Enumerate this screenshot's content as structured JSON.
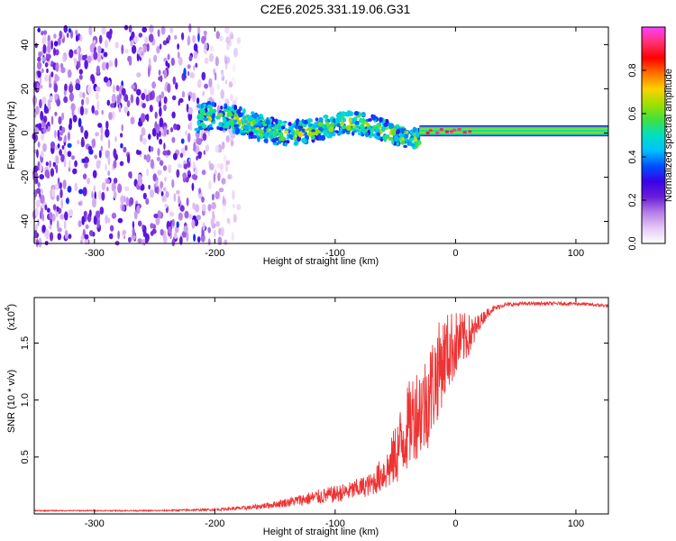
{
  "title": "C2E6.2025.331.19.06.G31",
  "chart_data": [
    {
      "type": "heatmap",
      "name": "spectrogram",
      "xlabel": "Height of straight line (km)",
      "ylabel": "Frequency (Hz)",
      "xlim": [
        -350,
        127
      ],
      "ylim": [
        -50,
        48
      ],
      "xticks": [
        -300,
        -200,
        -100,
        0,
        100
      ],
      "xtick_labels": [
        "-300",
        "-200",
        "-100",
        "0",
        "100"
      ],
      "yticks": [
        -40,
        -20,
        0,
        20,
        40
      ],
      "ytick_labels": [
        "-40",
        "-20",
        "0",
        "20",
        "40"
      ],
      "colorbar": {
        "label": "Normalized spectral amplitude",
        "range": [
          0,
          1
        ],
        "ticks": [
          0.0,
          0.2,
          0.4,
          0.6,
          0.8
        ],
        "tick_labels": [
          "0.0",
          "0.2",
          "0.4",
          "0.6",
          "0.8"
        ],
        "stops": [
          "#ffffff",
          "#e6c8f5",
          "#b57ee8",
          "#6a1fd8",
          "#3a00e8",
          "#0050ff",
          "#00bfff",
          "#00e0c0",
          "#40e040",
          "#a0e000",
          "#ffd000",
          "#ff7000",
          "#ff0000",
          "#ff3070",
          "#ff40ff"
        ]
      },
      "regions": [
        {
          "name": "noise",
          "x": [
            -350,
            -180
          ],
          "freq": [
            -50,
            48
          ],
          "amplitude": [
            0.05,
            0.25
          ]
        },
        {
          "name": "signal-trace",
          "x": [
            -215,
            -30
          ],
          "freq_center": [
            5,
            0
          ],
          "freq_width": 12,
          "amplitude": [
            0.2,
            0.6
          ]
        },
        {
          "name": "locked-band",
          "x": [
            -30,
            127
          ],
          "freq_center": 1,
          "freq_width": 5,
          "amplitude": [
            0.5,
            0.95
          ]
        }
      ]
    },
    {
      "type": "line",
      "name": "snr",
      "xlabel": "Height of straight line (km)",
      "ylabel": "SNR (10 * v/v)",
      "multiplier": "(x10",
      "multiplier_exp": "4",
      "multiplier_close": ")",
      "xlim": [
        -350,
        127
      ],
      "ylim": [
        0,
        1.9
      ],
      "xticks": [
        -300,
        -200,
        -100,
        0,
        100
      ],
      "xtick_labels": [
        "-300",
        "-200",
        "-100",
        "0",
        "100"
      ],
      "yticks": [
        0.5,
        1.0,
        1.5
      ],
      "ytick_labels": [
        "0.5",
        "1.0",
        "1.5"
      ],
      "color": "#ee3333",
      "series": [
        {
          "name": "SNR",
          "x": [
            -350,
            -300,
            -250,
            -200,
            -170,
            -150,
            -130,
            -110,
            -90,
            -70,
            -55,
            -45,
            -35,
            -25,
            -18,
            -12,
            -6,
            0,
            5,
            10,
            15,
            20,
            25,
            30,
            40,
            60,
            80,
            100,
            127
          ],
          "y": [
            0.03,
            0.03,
            0.03,
            0.04,
            0.06,
            0.09,
            0.13,
            0.17,
            0.21,
            0.28,
            0.45,
            0.7,
            0.95,
            1.05,
            1.25,
            1.4,
            1.5,
            1.55,
            1.57,
            1.6,
            1.62,
            1.7,
            1.76,
            1.8,
            1.84,
            1.85,
            1.85,
            1.85,
            1.83
          ],
          "noise": [
            0.005,
            0.005,
            0.006,
            0.01,
            0.02,
            0.03,
            0.05,
            0.07,
            0.08,
            0.1,
            0.2,
            0.35,
            0.4,
            0.45,
            0.45,
            0.4,
            0.35,
            0.3,
            0.25,
            0.2,
            0.15,
            0.07,
            0.05,
            0.03,
            0.02,
            0.015,
            0.015,
            0.015,
            0.015
          ]
        }
      ]
    }
  ]
}
